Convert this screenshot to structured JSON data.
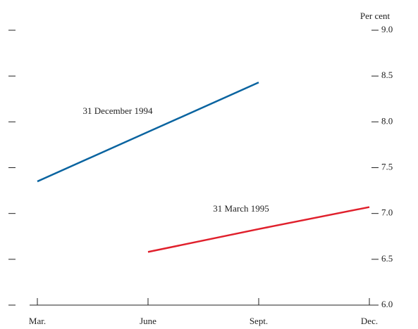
{
  "chart_data": {
    "type": "line",
    "y_axis_label": "Per cent",
    "categories": [
      "Mar.",
      "June",
      "Sept.",
      "Dec."
    ],
    "series": [
      {
        "name": "31 December 1994",
        "color": "#0a64a0",
        "values": [
          7.35,
          7.89,
          8.43,
          null
        ]
      },
      {
        "name": "31 March 1995",
        "color": "#e0202c",
        "values": [
          null,
          6.58,
          6.83,
          7.07
        ]
      }
    ],
    "ylim": [
      6,
      9
    ],
    "yticks": [
      {
        "value": 6,
        "label": "6.0"
      },
      6.5,
      {
        "value": 7,
        "label": "7.0"
      },
      7.5,
      {
        "value": 8,
        "label": "8.0"
      },
      8.5,
      {
        "value": 9,
        "label": "9.0"
      }
    ]
  }
}
